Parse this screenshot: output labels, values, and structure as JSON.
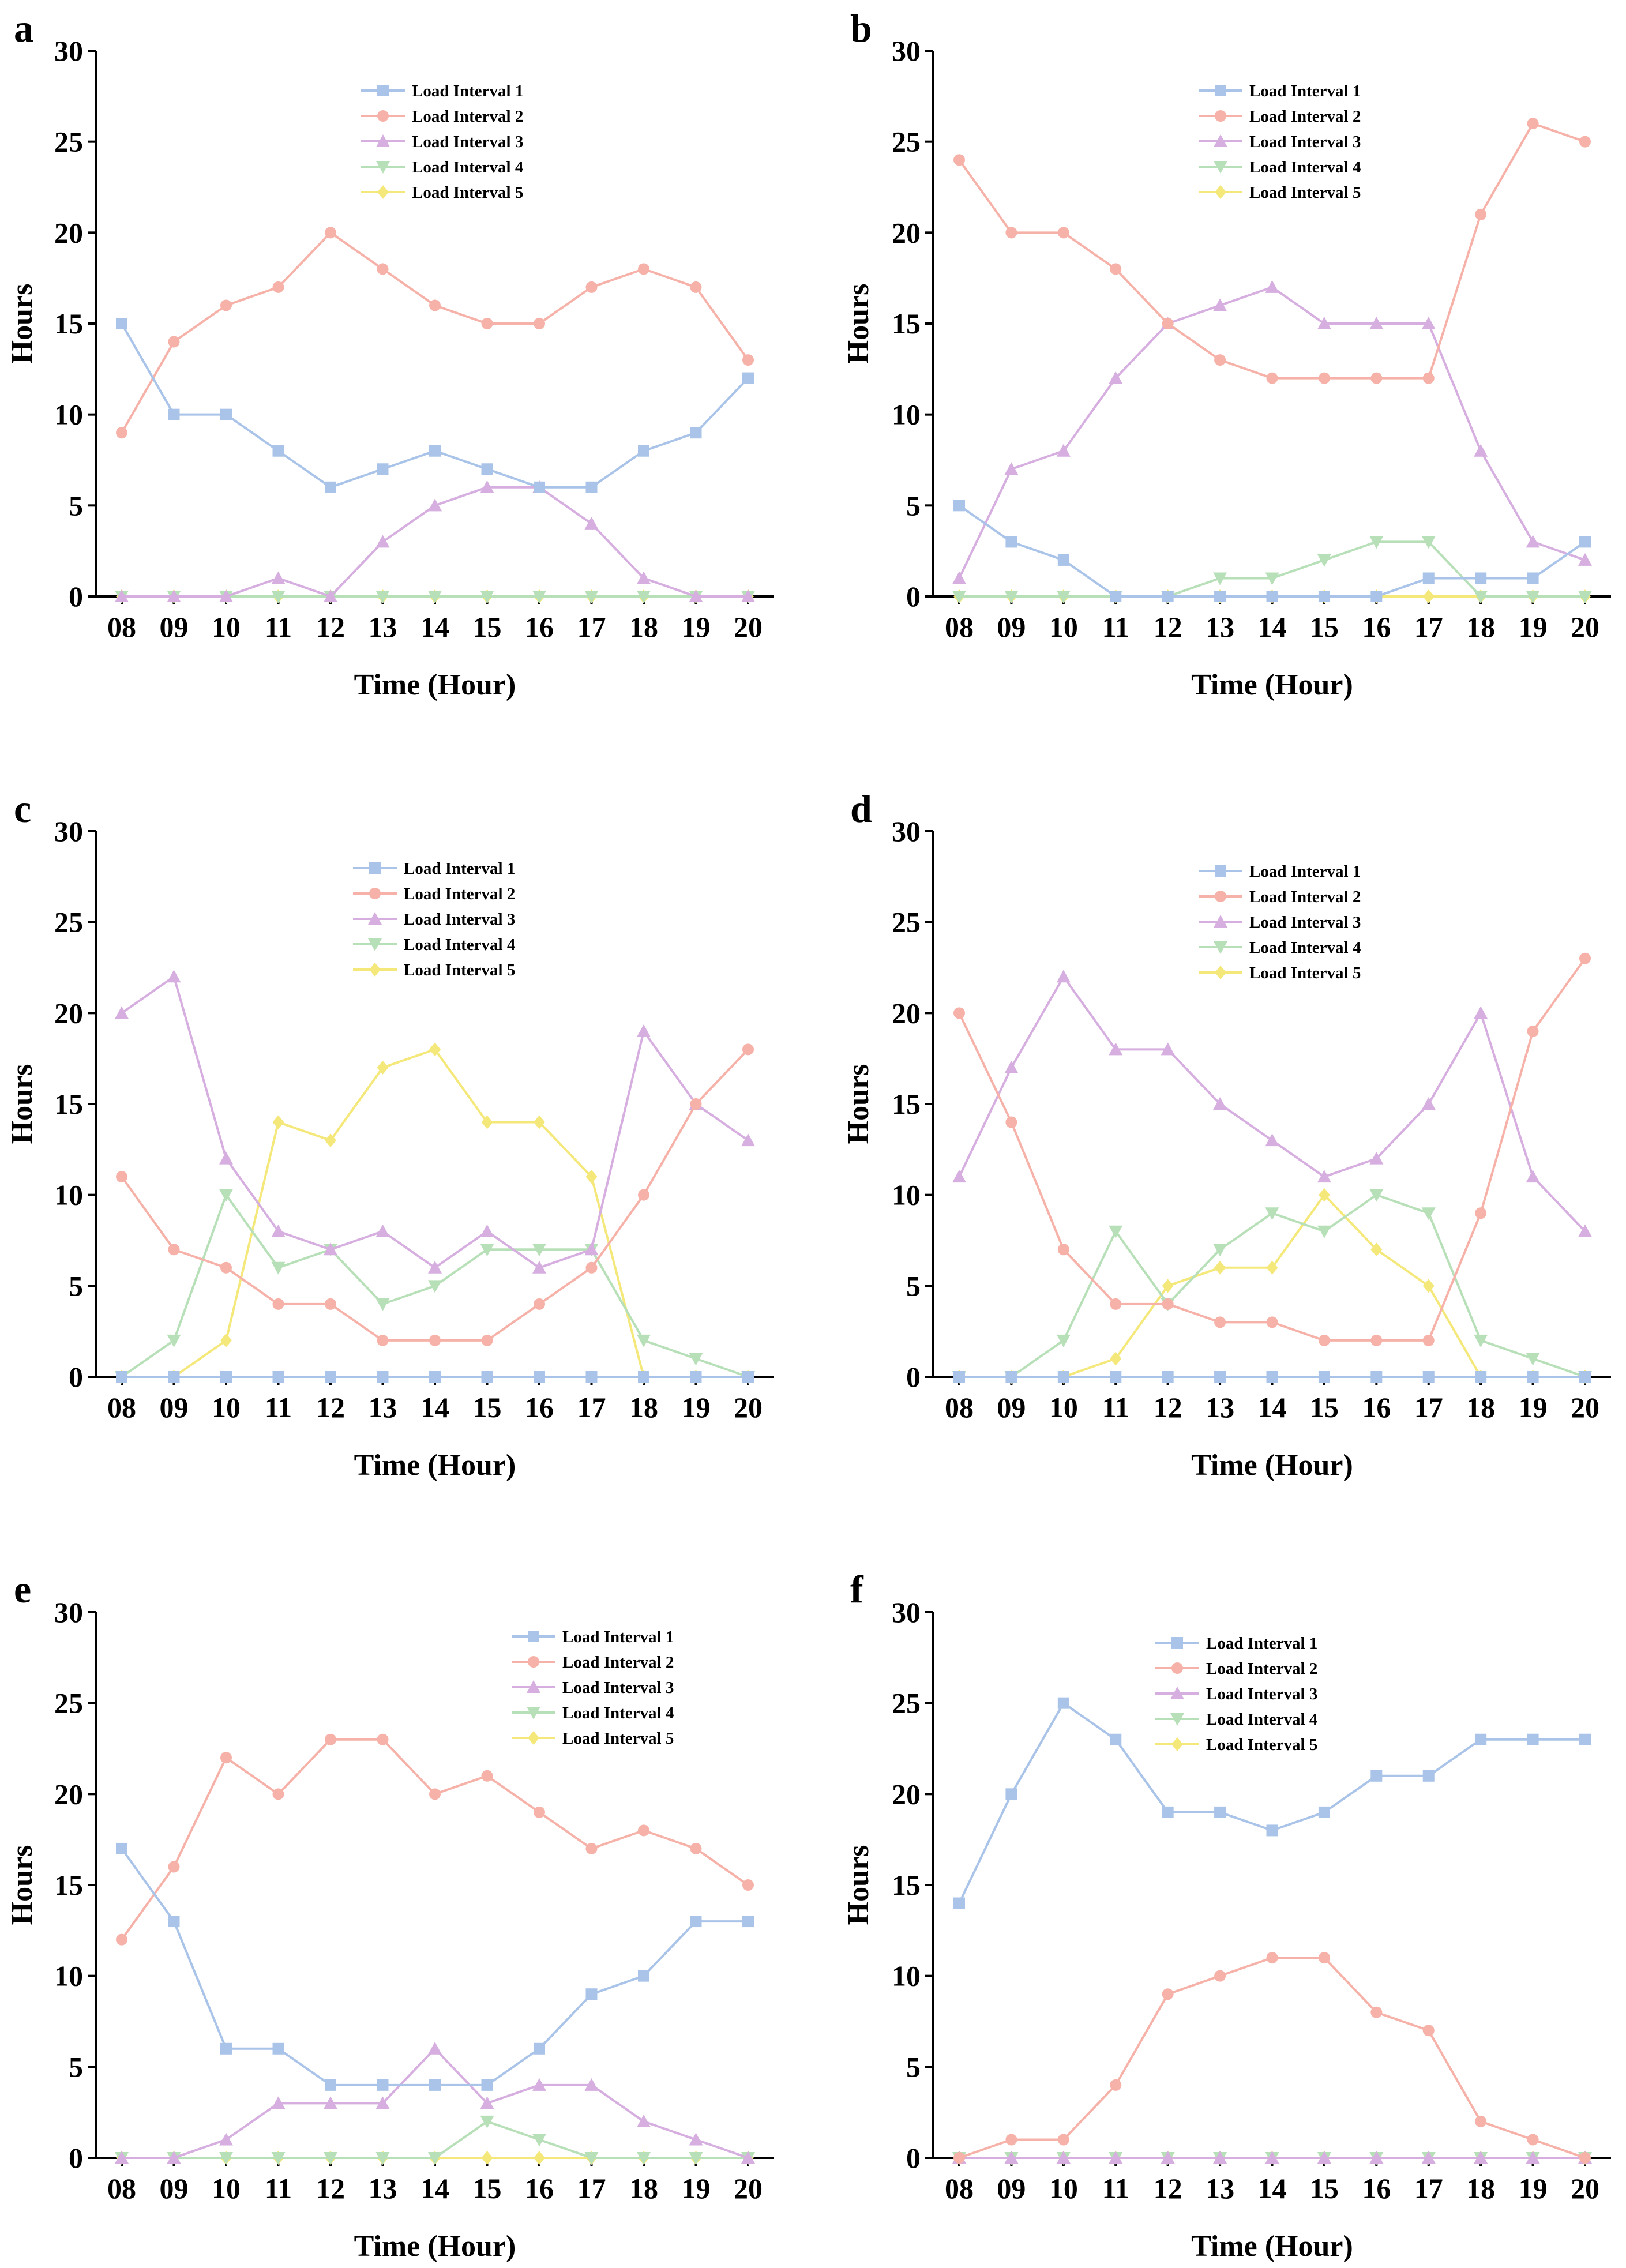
{
  "figure": {
    "series_names": [
      "Load Interval 1",
      "Load Interval 2",
      "Load Interval 3",
      "Load Interval 4",
      "Load Interval 5"
    ],
    "series_colors": [
      "#a9c4e8",
      "#f6b2a8",
      "#d6aee0",
      "#b8e0b8",
      "#f5e87a"
    ],
    "series_markers": [
      "square",
      "circle",
      "triangle-up",
      "triangle-down",
      "diamond"
    ]
  },
  "chart_data": [
    {
      "panel": "a",
      "type": "line",
      "xlabel": "Time (Hour)",
      "ylabel": "Hours",
      "ylim": [
        0,
        30
      ],
      "yticks": [
        "0",
        "5",
        "10",
        "15",
        "20",
        "25",
        "30"
      ],
      "categories": [
        "08",
        "09",
        "10",
        "11",
        "12",
        "13",
        "14",
        "15",
        "16",
        "17",
        "18",
        "19",
        "20"
      ],
      "legend_position": "top-center",
      "series": [
        {
          "name": "Load Interval 1",
          "values": [
            15,
            10,
            10,
            8,
            6,
            7,
            8,
            7,
            6,
            6,
            8,
            9,
            12
          ]
        },
        {
          "name": "Load Interval 2",
          "values": [
            9,
            14,
            16,
            17,
            20,
            18,
            16,
            15,
            15,
            17,
            18,
            17,
            13
          ]
        },
        {
          "name": "Load Interval 3",
          "values": [
            0,
            0,
            0,
            1,
            0,
            3,
            5,
            6,
            6,
            4,
            1,
            0,
            0
          ]
        },
        {
          "name": "Load Interval 4",
          "values": [
            0,
            0,
            0,
            0,
            0,
            0,
            0,
            0,
            0,
            0,
            0,
            0,
            0
          ]
        },
        {
          "name": "Load Interval 5",
          "values": [
            0,
            0,
            0,
            0,
            0,
            0,
            0,
            0,
            0,
            0,
            0,
            0,
            0
          ]
        }
      ]
    },
    {
      "panel": "b",
      "type": "line",
      "xlabel": "Time (Hour)",
      "ylabel": "Hours",
      "ylim": [
        0,
        30
      ],
      "yticks": [
        "0",
        "5",
        "10",
        "15",
        "20",
        "25",
        "30"
      ],
      "categories": [
        "08",
        "09",
        "10",
        "11",
        "12",
        "13",
        "14",
        "15",
        "16",
        "17",
        "18",
        "19",
        "20"
      ],
      "legend_position": "top-center",
      "series": [
        {
          "name": "Load Interval 1",
          "values": [
            5,
            3,
            2,
            0,
            0,
            0,
            0,
            0,
            0,
            1,
            1,
            1,
            3
          ]
        },
        {
          "name": "Load Interval 2",
          "values": [
            24,
            20,
            20,
            18,
            15,
            13,
            12,
            12,
            12,
            12,
            21,
            26,
            25
          ]
        },
        {
          "name": "Load Interval 3",
          "values": [
            1,
            7,
            8,
            12,
            15,
            16,
            17,
            15,
            15,
            15,
            8,
            3,
            2
          ]
        },
        {
          "name": "Load Interval 4",
          "values": [
            0,
            0,
            0,
            0,
            0,
            1,
            1,
            2,
            3,
            3,
            0,
            0,
            0
          ]
        },
        {
          "name": "Load Interval 5",
          "values": [
            0,
            0,
            0,
            0,
            0,
            0,
            0,
            0,
            0,
            0,
            0,
            0,
            0
          ]
        }
      ]
    },
    {
      "panel": "c",
      "type": "line",
      "xlabel": "Time (Hour)",
      "ylabel": "Hours",
      "ylim": [
        0,
        30
      ],
      "yticks": [
        "0",
        "5",
        "10",
        "15",
        "20",
        "25",
        "30"
      ],
      "categories": [
        "08",
        "09",
        "10",
        "11",
        "12",
        "13",
        "14",
        "15",
        "16",
        "17",
        "18",
        "19",
        "20"
      ],
      "legend_position": "top-center",
      "series": [
        {
          "name": "Load Interval 1",
          "values": [
            0,
            0,
            0,
            0,
            0,
            0,
            0,
            0,
            0,
            0,
            0,
            0,
            0
          ]
        },
        {
          "name": "Load Interval 2",
          "values": [
            11,
            7,
            6,
            4,
            4,
            2,
            2,
            2,
            4,
            6,
            10,
            15,
            18
          ]
        },
        {
          "name": "Load Interval 3",
          "values": [
            20,
            22,
            12,
            8,
            7,
            8,
            6,
            8,
            6,
            7,
            19,
            15,
            13
          ]
        },
        {
          "name": "Load Interval 4",
          "values": [
            0,
            2,
            10,
            6,
            7,
            4,
            5,
            7,
            7,
            7,
            2,
            1,
            0
          ]
        },
        {
          "name": "Load Interval 5",
          "values": [
            0,
            0,
            2,
            14,
            13,
            17,
            18,
            14,
            14,
            11,
            0,
            0,
            0
          ]
        }
      ]
    },
    {
      "panel": "d",
      "type": "line",
      "xlabel": "Time (Hour)",
      "ylabel": "Hours",
      "ylim": [
        0,
        30
      ],
      "yticks": [
        "0",
        "5",
        "10",
        "15",
        "20",
        "25",
        "30"
      ],
      "categories": [
        "08",
        "09",
        "10",
        "11",
        "12",
        "13",
        "14",
        "15",
        "16",
        "17",
        "18",
        "19",
        "20"
      ],
      "legend_position": "top-center",
      "series": [
        {
          "name": "Load Interval 1",
          "values": [
            0,
            0,
            0,
            0,
            0,
            0,
            0,
            0,
            0,
            0,
            0,
            0,
            0
          ]
        },
        {
          "name": "Load Interval 2",
          "values": [
            20,
            14,
            7,
            4,
            4,
            3,
            3,
            2,
            2,
            2,
            9,
            19,
            23
          ]
        },
        {
          "name": "Load Interval 3",
          "values": [
            11,
            17,
            22,
            18,
            18,
            15,
            13,
            11,
            12,
            15,
            20,
            11,
            8
          ]
        },
        {
          "name": "Load Interval 4",
          "values": [
            0,
            0,
            2,
            8,
            4,
            7,
            9,
            8,
            10,
            9,
            2,
            1,
            0
          ]
        },
        {
          "name": "Load Interval 5",
          "values": [
            0,
            0,
            0,
            1,
            5,
            6,
            6,
            10,
            7,
            5,
            0,
            0,
            0
          ]
        }
      ]
    },
    {
      "panel": "e",
      "type": "line",
      "xlabel": "Time (Hour)",
      "ylabel": "Hours",
      "ylim": [
        0,
        30
      ],
      "yticks": [
        "0",
        "5",
        "10",
        "15",
        "20",
        "25",
        "30"
      ],
      "categories": [
        "08",
        "09",
        "10",
        "11",
        "12",
        "13",
        "14",
        "15",
        "16",
        "17",
        "18",
        "19",
        "20"
      ],
      "legend_position": "top-right",
      "series": [
        {
          "name": "Load Interval 1",
          "values": [
            17,
            13,
            6,
            6,
            4,
            4,
            4,
            4,
            6,
            9,
            10,
            13,
            13
          ]
        },
        {
          "name": "Load Interval 2",
          "values": [
            12,
            16,
            22,
            20,
            23,
            23,
            20,
            21,
            19,
            17,
            18,
            17,
            15
          ]
        },
        {
          "name": "Load Interval 3",
          "values": [
            0,
            0,
            1,
            3,
            3,
            3,
            6,
            3,
            4,
            4,
            2,
            1,
            0
          ]
        },
        {
          "name": "Load Interval 4",
          "values": [
            0,
            0,
            0,
            0,
            0,
            0,
            0,
            2,
            1,
            0,
            0,
            0,
            0
          ]
        },
        {
          "name": "Load Interval 5",
          "values": [
            0,
            0,
            0,
            0,
            0,
            0,
            0,
            0,
            0,
            0,
            0,
            0,
            0
          ]
        }
      ]
    },
    {
      "panel": "f",
      "type": "line",
      "xlabel": "Time (Hour)",
      "ylabel": "Hours",
      "ylim": [
        0,
        30
      ],
      "yticks": [
        "0",
        "5",
        "10",
        "15",
        "20",
        "25",
        "30"
      ],
      "categories": [
        "08",
        "09",
        "10",
        "11",
        "12",
        "13",
        "14",
        "15",
        "16",
        "17",
        "18",
        "19",
        "20"
      ],
      "legend_position": "top-center",
      "series": [
        {
          "name": "Load Interval 1",
          "values": [
            14,
            20,
            25,
            23,
            19,
            19,
            18,
            19,
            21,
            21,
            23,
            23,
            23
          ]
        },
        {
          "name": "Load Interval 2",
          "values": [
            0,
            1,
            1,
            4,
            9,
            10,
            11,
            11,
            8,
            7,
            2,
            1,
            0
          ]
        },
        {
          "name": "Load Interval 3",
          "values": [
            0,
            0,
            0,
            0,
            0,
            0,
            0,
            0,
            0,
            0,
            0,
            0,
            0
          ]
        },
        {
          "name": "Load Interval 4",
          "values": [
            0,
            0,
            0,
            0,
            0,
            0,
            0,
            0,
            0,
            0,
            0,
            0,
            0
          ]
        },
        {
          "name": "Load Interval 5",
          "values": [
            0,
            0,
            0,
            0,
            0,
            0,
            0,
            0,
            0,
            0,
            0,
            0,
            0
          ]
        }
      ]
    }
  ]
}
